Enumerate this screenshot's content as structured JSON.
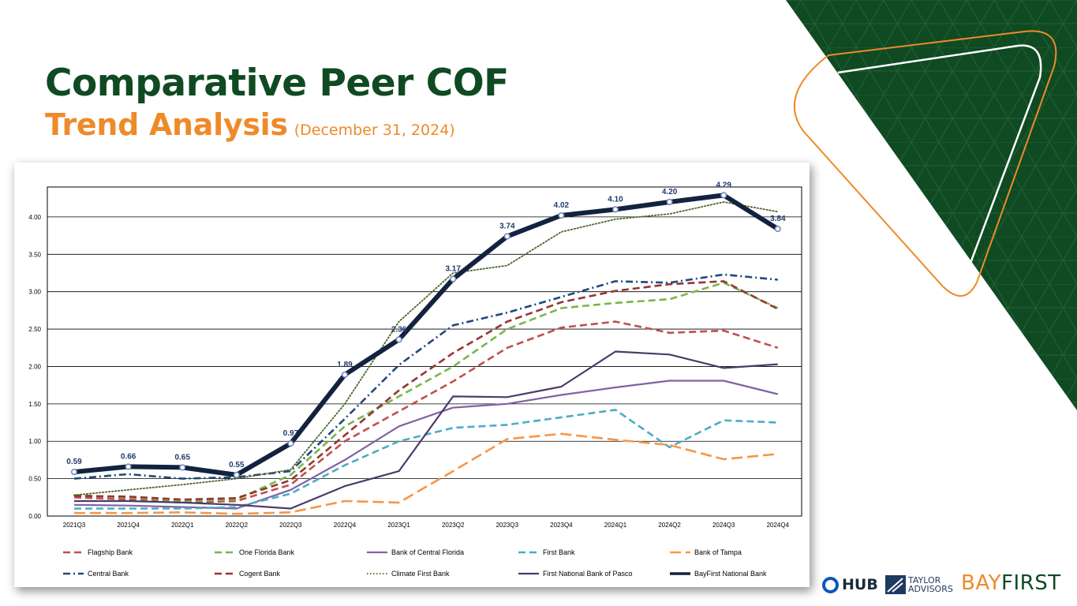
{
  "slide": {
    "title_line1": "Comparative Peer COF",
    "title_line2": "Trend Analysis",
    "title_date": "(December 31, 2024)"
  },
  "logos": {
    "hub": "HUB",
    "taylor_line1": "TAYLOR",
    "taylor_line2": "ADVISORS",
    "bayfirst_part1": "BAY",
    "bayfirst_part2": "FIRST"
  },
  "colors": {
    "dark_green": "#0f4a23",
    "orange": "#ef8a2a",
    "navy": "#13223f"
  },
  "chart_data": {
    "type": "line",
    "title": "",
    "xlabel": "",
    "ylabel": "",
    "ylim": [
      0,
      4.4
    ],
    "yticks": [
      "0.00",
      "0.50",
      "1.00",
      "1.50",
      "2.00",
      "2.50",
      "3.00",
      "3.50",
      "4.00"
    ],
    "categories": [
      "2021Q3",
      "2021Q4",
      "2022Q1",
      "2022Q2",
      "2022Q3",
      "2022Q4",
      "2023Q1",
      "2023Q2",
      "2023Q3",
      "2023Q4",
      "2024Q1",
      "2024Q2",
      "2024Q3",
      "2024Q4"
    ],
    "series": [
      {
        "name": "Flagship Bank",
        "color": "#c0504d",
        "style": "dash",
        "values": [
          0.25,
          0.22,
          0.18,
          0.2,
          0.42,
          1.0,
          1.4,
          1.8,
          2.25,
          2.52,
          2.6,
          2.45,
          2.48,
          2.25
        ]
      },
      {
        "name": "One Florida Bank",
        "color": "#7ab648",
        "style": "dash",
        "values": [
          0.28,
          0.25,
          0.2,
          0.22,
          0.55,
          1.2,
          1.6,
          2.0,
          2.5,
          2.78,
          2.85,
          2.9,
          3.12,
          2.78
        ]
      },
      {
        "name": "Bank of Central Florida",
        "color": "#8064a2",
        "style": "solid",
        "values": [
          0.15,
          0.14,
          0.12,
          0.1,
          0.35,
          0.75,
          1.2,
          1.45,
          1.5,
          1.62,
          1.72,
          1.81,
          1.81,
          1.63
        ]
      },
      {
        "name": "First Bank",
        "color": "#4bacc6",
        "style": "dash",
        "values": [
          0.1,
          0.1,
          0.1,
          0.12,
          0.3,
          0.68,
          1.0,
          1.18,
          1.22,
          1.32,
          1.42,
          0.92,
          1.28,
          1.25
        ]
      },
      {
        "name": "Bank of Tampa",
        "color": "#f79646",
        "style": "longdash",
        "values": [
          0.04,
          0.04,
          0.05,
          0.03,
          0.05,
          0.2,
          0.18,
          0.6,
          1.03,
          1.1,
          1.02,
          0.95,
          0.76,
          0.83
        ]
      },
      {
        "name": "Central Bank",
        "color": "#1f497d",
        "style": "dashdot",
        "values": [
          0.5,
          0.56,
          0.5,
          0.52,
          0.6,
          1.3,
          2.02,
          2.55,
          2.72,
          2.93,
          3.14,
          3.12,
          3.23,
          3.16
        ]
      },
      {
        "name": "Cogent Bank",
        "color": "#943634",
        "style": "dash",
        "values": [
          0.27,
          0.26,
          0.22,
          0.24,
          0.48,
          1.08,
          1.68,
          2.18,
          2.6,
          2.86,
          3.01,
          3.1,
          3.14,
          2.77
        ]
      },
      {
        "name": "Climate First Bank",
        "color": "#4f6228",
        "style": "dot",
        "values": [
          0.28,
          0.35,
          0.42,
          0.5,
          0.62,
          1.5,
          2.6,
          3.25,
          3.35,
          3.8,
          3.97,
          4.04,
          4.2,
          4.07
        ]
      },
      {
        "name": "First National Bank of Pasco",
        "color": "#4b3b6b",
        "style": "solid",
        "values": [
          0.2,
          0.2,
          0.18,
          0.15,
          0.1,
          0.4,
          0.6,
          1.6,
          1.59,
          1.73,
          2.2,
          2.16,
          1.98,
          2.03
        ]
      },
      {
        "name": "BayFirst National Bank",
        "color": "#13223f",
        "style": "bold",
        "values": [
          0.59,
          0.66,
          0.65,
          0.55,
          0.97,
          1.89,
          2.36,
          3.17,
          3.74,
          4.02,
          4.1,
          4.2,
          4.29,
          3.84
        ]
      }
    ],
    "data_labels": [
      "0.59",
      "0.66",
      "0.65",
      "0.55",
      "0.97",
      "1.89",
      "2.36",
      "3.17",
      "3.74",
      "4.02",
      "4.10",
      "4.20",
      "4.29",
      "3.84"
    ],
    "legend_position": "bottom",
    "grid": true
  }
}
